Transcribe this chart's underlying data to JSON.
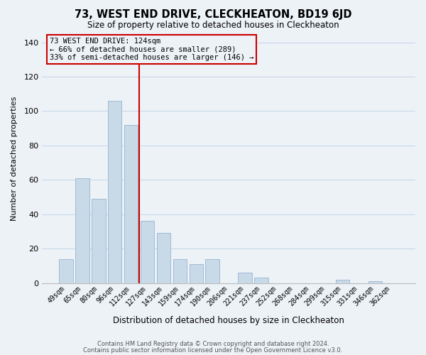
{
  "title": "73, WEST END DRIVE, CLECKHEATON, BD19 6JD",
  "subtitle": "Size of property relative to detached houses in Cleckheaton",
  "xlabel": "Distribution of detached houses by size in Cleckheaton",
  "ylabel": "Number of detached properties",
  "footer_line1": "Contains HM Land Registry data © Crown copyright and database right 2024.",
  "footer_line2": "Contains public sector information licensed under the Open Government Licence v3.0.",
  "bar_labels": [
    "49sqm",
    "65sqm",
    "80sqm",
    "96sqm",
    "112sqm",
    "127sqm",
    "143sqm",
    "159sqm",
    "174sqm",
    "190sqm",
    "206sqm",
    "221sqm",
    "237sqm",
    "252sqm",
    "268sqm",
    "284sqm",
    "299sqm",
    "315sqm",
    "331sqm",
    "346sqm",
    "362sqm"
  ],
  "bar_values": [
    14,
    61,
    49,
    106,
    92,
    36,
    29,
    14,
    11,
    14,
    0,
    6,
    3,
    0,
    0,
    0,
    0,
    2,
    0,
    1,
    0
  ],
  "bar_color": "#c8d9e8",
  "bar_edge_color": "#a0bcd4",
  "vline_color": "#cc0000",
  "annotation_line1": "73 WEST END DRIVE: 124sqm",
  "annotation_line2": "← 66% of detached houses are smaller (289)",
  "annotation_line3": "33% of semi-detached houses are larger (146) →",
  "annotation_box_edge": "#cc0000",
  "ylim": [
    0,
    145
  ],
  "yticks": [
    0,
    20,
    40,
    60,
    80,
    100,
    120,
    140
  ],
  "grid_color": "#c8d8e8",
  "bg_color": "#edf2f7"
}
